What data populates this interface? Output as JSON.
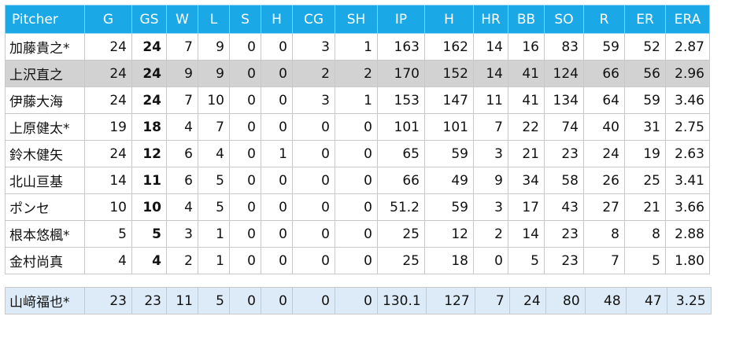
{
  "columns": [
    "Pitcher",
    "G",
    "GS",
    "W",
    "L",
    "S",
    "H",
    "CG",
    "SH",
    "IP",
    "H",
    "HR",
    "BB",
    "SO",
    "R",
    "ER",
    "ERA"
  ],
  "rows": [
    [
      "加藤貴之*",
      "24",
      "24",
      "7",
      "9",
      "0",
      "0",
      "3",
      "1",
      "163",
      "162",
      "14",
      "16",
      "83",
      "59",
      "52",
      "2.87"
    ],
    [
      "上沢直之",
      "24",
      "24",
      "9",
      "9",
      "0",
      "0",
      "2",
      "2",
      "170",
      "152",
      "14",
      "41",
      "124",
      "66",
      "56",
      "2.96"
    ],
    [
      "伊藤大海",
      "24",
      "24",
      "7",
      "10",
      "0",
      "0",
      "3",
      "1",
      "153",
      "147",
      "11",
      "41",
      "134",
      "64",
      "59",
      "3.46"
    ],
    [
      "上原健太*",
      "19",
      "18",
      "4",
      "7",
      "0",
      "0",
      "0",
      "0",
      "101",
      "101",
      "7",
      "22",
      "74",
      "40",
      "31",
      "2.75"
    ],
    [
      "鈴木健矢",
      "24",
      "12",
      "6",
      "4",
      "0",
      "1",
      "0",
      "0",
      "65",
      "59",
      "3",
      "21",
      "23",
      "24",
      "19",
      "2.63"
    ],
    [
      "北山亘基",
      "14",
      "11",
      "6",
      "5",
      "0",
      "0",
      "0",
      "0",
      "66",
      "49",
      "9",
      "34",
      "58",
      "26",
      "25",
      "3.41"
    ],
    [
      "ポンセ",
      "10",
      "10",
      "4",
      "5",
      "0",
      "0",
      "0",
      "0",
      "51.2",
      "59",
      "3",
      "17",
      "43",
      "27",
      "21",
      "3.66"
    ],
    [
      "根本悠楓*",
      "5",
      "5",
      "3",
      "1",
      "0",
      "0",
      "0",
      "0",
      "25",
      "12",
      "2",
      "14",
      "23",
      "8",
      "8",
      "2.88"
    ],
    [
      "金村尚真",
      "4",
      "4",
      "2",
      "1",
      "0",
      "0",
      "0",
      "0",
      "25",
      "18",
      "0",
      "5",
      "23",
      "7",
      "5",
      "1.80"
    ]
  ],
  "highlight_row": 1,
  "summary": [
    "山﨑福也*",
    "23",
    "23",
    "11",
    "5",
    "0",
    "0",
    "0",
    "0",
    "130.1",
    "127",
    "7",
    "24",
    "80",
    "48",
    "47",
    "3.25"
  ],
  "colors": {
    "header_bg": "#1ba8e6",
    "highlight_bg": "#d2d2d2",
    "summary_bg": "#dcebf7"
  }
}
